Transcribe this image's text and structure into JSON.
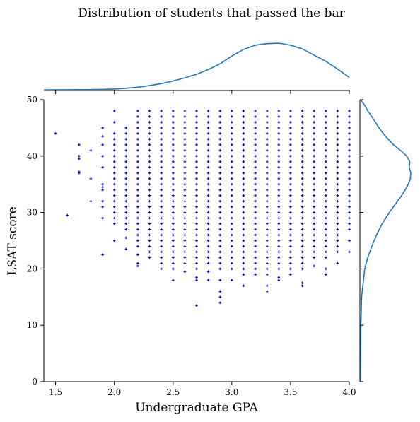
{
  "chart_data": {
    "type": "scatter",
    "title": "Distribution of students that passed the bar",
    "xlabel": "Undergraduate GPA",
    "ylabel": "LSAT score",
    "xlim": [
      1.4,
      4.0
    ],
    "ylim": [
      0,
      50
    ],
    "xticks": [
      "1.5",
      "2.0",
      "2.5",
      "3.0",
      "3.5",
      "4.0"
    ],
    "yticks": [
      "0",
      "10",
      "20",
      "30",
      "40",
      "50"
    ],
    "grid": false,
    "colors": {
      "points": "#0000ff",
      "density": "#1f77b4"
    },
    "columns": [
      {
        "x": 1.5,
        "y": [
          44
        ]
      },
      {
        "x": 1.6,
        "y": [
          29.5
        ]
      },
      {
        "x": 1.7,
        "y": [
          37,
          37.2,
          39.5,
          40,
          42
        ]
      },
      {
        "x": 1.8,
        "y": [
          32,
          36,
          41
        ]
      },
      {
        "x": 1.9,
        "y": [
          22.5,
          29,
          31,
          32,
          34,
          34.5,
          35,
          38,
          40,
          42,
          43.5,
          45
        ]
      },
      {
        "x": 2.0,
        "y": [
          25,
          28,
          29,
          30,
          31,
          32,
          33,
          34,
          35,
          36,
          37,
          38,
          39,
          40,
          41,
          42,
          43,
          44,
          46,
          48
        ]
      },
      {
        "x": 2.1,
        "y": [
          23.5,
          25.5,
          27,
          28,
          29,
          30,
          31,
          32,
          33,
          34,
          35,
          36,
          37,
          38,
          39,
          40,
          41,
          42,
          43,
          44,
          45
        ]
      },
      {
        "x": 2.2,
        "y": [
          20.5,
          21,
          22.5,
          24,
          25,
          26,
          27,
          28,
          29,
          30,
          31,
          32,
          33,
          34,
          35,
          36,
          37,
          38,
          39,
          40,
          41,
          42,
          43,
          44,
          45,
          46,
          47,
          48
        ]
      },
      {
        "x": 2.3,
        "y": [
          22,
          23,
          24,
          25,
          26,
          27,
          28,
          29,
          30,
          31,
          32,
          33,
          34,
          35,
          36,
          37,
          38,
          39,
          40,
          41,
          42,
          43,
          44,
          45,
          46,
          47,
          48
        ]
      },
      {
        "x": 2.4,
        "y": [
          20,
          21,
          22,
          23,
          24,
          25,
          26,
          27,
          28,
          29,
          30,
          31,
          32,
          33,
          34,
          35,
          36,
          37,
          38,
          39,
          40,
          41,
          42,
          43,
          44,
          45,
          46,
          47,
          48
        ]
      },
      {
        "x": 2.5,
        "y": [
          18,
          20,
          21,
          22,
          23,
          24,
          25,
          26,
          27,
          28,
          29,
          30,
          31,
          32,
          33,
          34,
          35,
          36,
          37,
          38,
          39,
          40,
          41,
          42,
          43,
          44,
          45,
          46,
          47,
          48
        ]
      },
      {
        "x": 2.6,
        "y": [
          19.5,
          21,
          22,
          23,
          24,
          25,
          26,
          27,
          28,
          29,
          30,
          31,
          32,
          33,
          34,
          35,
          36,
          37,
          38,
          39,
          40,
          41,
          42,
          43,
          44,
          45,
          46,
          47,
          48
        ]
      },
      {
        "x": 2.7,
        "y": [
          13.5,
          18,
          18.5,
          20,
          21,
          22,
          23,
          24,
          25,
          26,
          27,
          28,
          29,
          30,
          31,
          32,
          33,
          34,
          35,
          36,
          37,
          38,
          39,
          40,
          41,
          42,
          43,
          44,
          45,
          46,
          47,
          48
        ]
      },
      {
        "x": 2.8,
        "y": [
          18,
          19.5,
          21,
          22,
          23,
          24,
          25,
          26,
          27,
          28,
          29,
          30,
          31,
          32,
          33,
          34,
          35,
          36,
          37,
          38,
          39,
          40,
          41,
          42,
          43,
          44,
          45,
          46,
          47,
          48
        ]
      },
      {
        "x": 2.9,
        "y": [
          14,
          15,
          16,
          18,
          20,
          21,
          22,
          23,
          24,
          25,
          26,
          27,
          28,
          29,
          30,
          31,
          32,
          33,
          34,
          35,
          36,
          37,
          38,
          39,
          40,
          41,
          42,
          43,
          44,
          45,
          46,
          47,
          48
        ]
      },
      {
        "x": 3.0,
        "y": [
          18,
          20,
          21,
          22,
          23,
          24,
          25,
          26,
          27,
          28,
          29,
          30,
          31,
          32,
          33,
          34,
          35,
          36,
          37,
          38,
          39,
          40,
          41,
          42,
          43,
          44,
          45,
          46,
          47,
          48
        ]
      },
      {
        "x": 3.1,
        "y": [
          17,
          19,
          20,
          21,
          22,
          23,
          24,
          25,
          26,
          27,
          28,
          29,
          30,
          31,
          32,
          33,
          34,
          35,
          36,
          37,
          38,
          39,
          40,
          41,
          42,
          43,
          44,
          45,
          46,
          47,
          48
        ]
      },
      {
        "x": 3.2,
        "y": [
          19,
          20,
          21,
          22,
          23,
          24,
          25,
          26,
          27,
          28,
          29,
          30,
          31,
          32,
          33,
          34,
          35,
          36,
          37,
          38,
          39,
          40,
          41,
          42,
          43,
          44,
          45,
          46,
          47,
          48
        ]
      },
      {
        "x": 3.3,
        "y": [
          16,
          17,
          19,
          20,
          21,
          22,
          23,
          24,
          25,
          26,
          27,
          28,
          29,
          30,
          31,
          32,
          33,
          34,
          35,
          36,
          37,
          38,
          39,
          40,
          41,
          42,
          43,
          44,
          45,
          46,
          47,
          48
        ]
      },
      {
        "x": 3.4,
        "y": [
          18,
          18.5,
          20,
          21,
          22,
          23,
          24,
          25,
          26,
          27,
          28,
          29,
          30,
          31,
          32,
          33,
          34,
          35,
          36,
          37,
          38,
          39,
          40,
          41,
          42,
          43,
          44,
          45,
          46,
          47,
          48
        ]
      },
      {
        "x": 3.5,
        "y": [
          19,
          20,
          21,
          22,
          23,
          24,
          25,
          26,
          27,
          28,
          29,
          30,
          31,
          32,
          33,
          34,
          35,
          36,
          37,
          38,
          39,
          40,
          41,
          42,
          43,
          44,
          45,
          46,
          47,
          48
        ]
      },
      {
        "x": 3.6,
        "y": [
          17,
          17.5,
          20,
          21,
          22,
          23,
          24,
          25,
          26,
          27,
          28,
          29,
          30,
          31,
          32,
          33,
          34,
          35,
          36,
          37,
          38,
          39,
          40,
          41,
          42,
          43,
          44,
          45,
          46,
          47,
          48
        ]
      },
      {
        "x": 3.7,
        "y": [
          20.5,
          22,
          23,
          24,
          25,
          26,
          27,
          28,
          29,
          30,
          31,
          32,
          33,
          34,
          35,
          36,
          37,
          38,
          39,
          40,
          41,
          42,
          43,
          44,
          45,
          46,
          47,
          48
        ]
      },
      {
        "x": 3.8,
        "y": [
          19,
          20,
          22,
          23,
          24,
          25,
          26,
          27,
          28,
          29,
          30,
          31,
          32,
          33,
          34,
          35,
          36,
          37,
          38,
          39,
          40,
          41,
          42,
          43,
          44,
          45,
          46,
          47,
          48
        ]
      },
      {
        "x": 3.9,
        "y": [
          21,
          23,
          24,
          25,
          26,
          27,
          28,
          29,
          30,
          31,
          32,
          33,
          34,
          35,
          36,
          37,
          38,
          39,
          40,
          41,
          42,
          43,
          44,
          45,
          46,
          47,
          48
        ]
      },
      {
        "x": 4.0,
        "y": [
          23,
          25,
          27,
          28,
          29,
          30,
          31,
          32,
          33,
          34,
          35,
          36,
          37,
          38,
          39,
          40,
          41,
          42,
          43,
          44,
          45,
          46,
          47,
          48
        ]
      }
    ],
    "marginal_x_density": {
      "x": [
        1.4,
        1.6,
        1.8,
        1.9,
        2.0,
        2.1,
        2.2,
        2.3,
        2.4,
        2.5,
        2.6,
        2.7,
        2.8,
        2.9,
        3.0,
        3.1,
        3.2,
        3.3,
        3.4,
        3.5,
        3.6,
        3.7,
        3.8,
        3.9,
        4.0
      ],
      "density": [
        0.0,
        0.001,
        0.004,
        0.008,
        0.015,
        0.03,
        0.05,
        0.08,
        0.12,
        0.17,
        0.23,
        0.3,
        0.39,
        0.5,
        0.65,
        0.78,
        0.86,
        0.89,
        0.9,
        0.86,
        0.79,
        0.67,
        0.55,
        0.4,
        0.24
      ]
    },
    "marginal_y_density": {
      "y": [
        0,
        10,
        15,
        20,
        22,
        24,
        26,
        28,
        30,
        32,
        33,
        34,
        35,
        36,
        37,
        38,
        39,
        40,
        41,
        42,
        43,
        44,
        45,
        46,
        47,
        48,
        49,
        50
      ],
      "density": [
        0.0,
        0.005,
        0.02,
        0.08,
        0.14,
        0.22,
        0.31,
        0.42,
        0.56,
        0.72,
        0.8,
        0.87,
        0.93,
        0.97,
        0.98,
        0.95,
        0.96,
        0.9,
        0.78,
        0.64,
        0.54,
        0.44,
        0.36,
        0.29,
        0.22,
        0.14,
        0.08,
        0.0
      ]
    }
  }
}
